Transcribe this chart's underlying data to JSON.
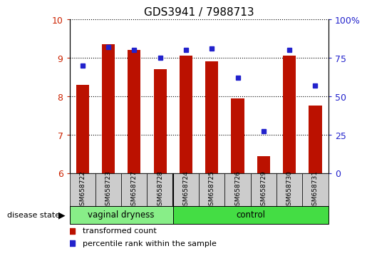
{
  "title": "GDS3941 / 7988713",
  "categories": [
    "GSM658722",
    "GSM658723",
    "GSM658727",
    "GSM658728",
    "GSM658724",
    "GSM658725",
    "GSM658726",
    "GSM658729",
    "GSM658730",
    "GSM658731"
  ],
  "bar_values": [
    8.3,
    9.35,
    9.2,
    8.7,
    9.05,
    8.9,
    7.95,
    6.45,
    9.05,
    7.75
  ],
  "dot_values": [
    70,
    82,
    80,
    75,
    80,
    81,
    62,
    27,
    80,
    57
  ],
  "bar_color": "#bb1100",
  "dot_color": "#2222cc",
  "ylim_left": [
    6,
    10
  ],
  "ylim_right": [
    0,
    100
  ],
  "yticks_left": [
    6,
    7,
    8,
    9,
    10
  ],
  "yticks_right": [
    0,
    25,
    50,
    75,
    100
  ],
  "vaginal_dryness_count": 4,
  "disease_state_label": "disease state",
  "legend_bar_label": "transformed count",
  "legend_dot_label": "percentile rank within the sample",
  "tick_color_left": "#cc2200",
  "tick_color_right": "#2222cc",
  "group_color_1": "#88ee88",
  "group_color_2": "#44dd44",
  "xtick_bg_color": "#cccccc"
}
